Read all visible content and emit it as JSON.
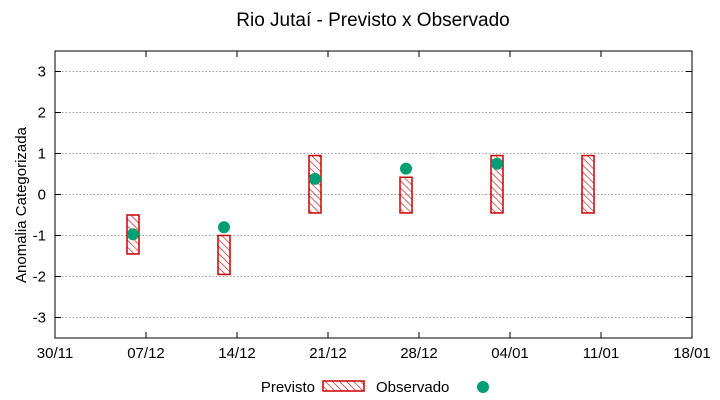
{
  "chart_data": {
    "type": "scatter",
    "title": "Rio Jutaí - Previsto x Observado",
    "xlabel": "",
    "ylabel": "Anomalia Categorizada",
    "x_ticks": [
      "30/11",
      "07/12",
      "14/12",
      "21/12",
      "28/12",
      "04/01",
      "11/01",
      "18/01"
    ],
    "xlim": [
      "30/11",
      "18/01"
    ],
    "ylim": [
      -3.5,
      3.5
    ],
    "y_ticks": [
      -3,
      -2,
      -1,
      0,
      1,
      2,
      3
    ],
    "grid": true,
    "legend_position": "bottom",
    "series": [
      {
        "name": "Previsto",
        "kind": "range",
        "color": "#cc0000",
        "points": [
          {
            "date": "06/12",
            "low": -1.45,
            "high": -0.5
          },
          {
            "date": "13/12",
            "low": -1.95,
            "high": -1.0
          },
          {
            "date": "20/12",
            "low": -0.45,
            "high": 0.95
          },
          {
            "date": "27/12",
            "low": -0.45,
            "high": 0.42
          },
          {
            "date": "03/01",
            "low": -0.45,
            "high": 0.95
          },
          {
            "date": "10/01",
            "low": -0.45,
            "high": 0.95
          }
        ]
      },
      {
        "name": "Observado",
        "kind": "point",
        "color": "#009e73",
        "points": [
          {
            "date": "06/12",
            "value": -0.97
          },
          {
            "date": "13/12",
            "value": -0.8
          },
          {
            "date": "20/12",
            "value": 0.38
          },
          {
            "date": "27/12",
            "value": 0.63
          },
          {
            "date": "03/01",
            "value": 0.75
          }
        ]
      }
    ]
  }
}
